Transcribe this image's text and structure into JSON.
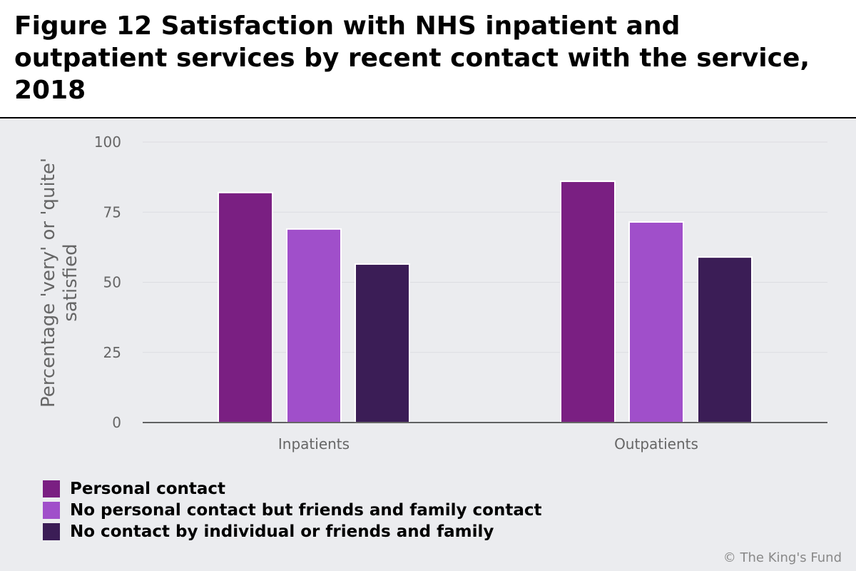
{
  "title": "Figure 12 Satisfaction with NHS inpatient and outpatient services by recent contact with the service, 2018",
  "copyright": "© The King's Fund",
  "colors": {
    "background": "#ebecef",
    "series": [
      "#7a1f82",
      "#a04fca",
      "#3b1d56"
    ]
  },
  "chart_data": {
    "type": "bar",
    "categories": [
      "Inpatients",
      "Outpatients"
    ],
    "series": [
      {
        "name": "Personal contact",
        "values": [
          82,
          86
        ]
      },
      {
        "name": "No personal contact but friends and family contact",
        "values": [
          69,
          71.5
        ]
      },
      {
        "name": "No contact by individual or friends and family",
        "values": [
          56.5,
          59
        ]
      }
    ],
    "ylabel": "Percentage 'very' or 'quite' satisfied",
    "ylabel_lines": [
      "Percentage 'very' or 'quite'",
      "satisfied"
    ],
    "ylim": [
      0,
      100
    ],
    "yticks": [
      0,
      25,
      50,
      75,
      100
    ],
    "grid": true,
    "legend_position": "bottom-left"
  }
}
